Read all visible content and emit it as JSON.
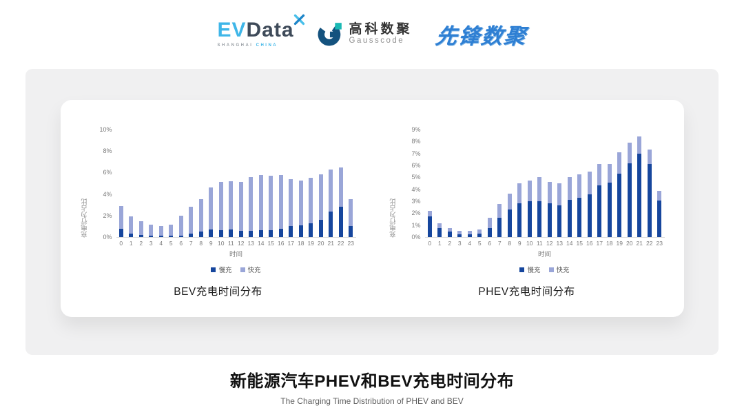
{
  "header": {
    "logos": {
      "evdata": {
        "ev": "EV",
        "data": "Data",
        "sub1": "SHANGHAI",
        "sub2": "CHINA"
      },
      "gausscode": {
        "cn": "高科数聚",
        "en": "Gausscode"
      },
      "pioneer": {
        "text": "先锋数聚"
      }
    }
  },
  "colors": {
    "slow": "#16469d",
    "fast": "#9aa6d8",
    "evdata_blue": "#3fb6e8",
    "evdata_dark": "#3e4a59",
    "gausscode_navy": "#14527e",
    "gausscode_teal": "#1ab9b4",
    "pioneer_blue": "#2e7fd3"
  },
  "chart_data": [
    {
      "type": "bar",
      "stacked": true,
      "title": "BEV充电时间分布",
      "ylabel": "充电行为占比",
      "xlabel": "时间",
      "grid": false,
      "legend_position": "bottom",
      "categories": [
        "0",
        "1",
        "2",
        "3",
        "4",
        "5",
        "6",
        "7",
        "8",
        "9",
        "10",
        "11",
        "12",
        "13",
        "14",
        "15",
        "16",
        "17",
        "18",
        "19",
        "20",
        "21",
        "22",
        "23"
      ],
      "ylim": [
        0,
        10
      ],
      "yticks": [
        0,
        2,
        4,
        6,
        8,
        10
      ],
      "series": [
        {
          "name": "慢充",
          "color_key": "slow",
          "values": [
            0.75,
            0.35,
            0.2,
            0.1,
            0.1,
            0.1,
            0.15,
            0.35,
            0.5,
            0.7,
            0.65,
            0.7,
            0.6,
            0.6,
            0.65,
            0.65,
            0.8,
            1.0,
            1.1,
            1.3,
            1.6,
            2.4,
            2.8,
            1.0
          ]
        },
        {
          "name": "快充",
          "color_key": "fast",
          "values": [
            2.15,
            1.55,
            1.3,
            1.05,
            0.95,
            1.05,
            1.85,
            2.45,
            3.0,
            3.9,
            4.45,
            4.5,
            4.5,
            4.95,
            5.1,
            5.05,
            4.95,
            4.4,
            4.15,
            4.2,
            4.25,
            3.9,
            3.7,
            2.55
          ]
        }
      ]
    },
    {
      "type": "bar",
      "stacked": true,
      "title": "PHEV充电时间分布",
      "ylabel": "充电行为占比",
      "xlabel": "时间",
      "grid": false,
      "legend_position": "bottom",
      "categories": [
        "0",
        "1",
        "2",
        "3",
        "4",
        "5",
        "6",
        "7",
        "8",
        "9",
        "10",
        "11",
        "12",
        "13",
        "14",
        "15",
        "16",
        "17",
        "18",
        "19",
        "20",
        "21",
        "22",
        "23"
      ],
      "ylim": [
        0,
        9
      ],
      "yticks": [
        0,
        1,
        2,
        3,
        4,
        5,
        6,
        7,
        8,
        9
      ],
      "series": [
        {
          "name": "慢充",
          "color_key": "slow",
          "values": [
            1.75,
            0.75,
            0.45,
            0.25,
            0.25,
            0.3,
            0.75,
            1.6,
            2.3,
            2.8,
            3.0,
            3.0,
            2.8,
            2.65,
            3.1,
            3.3,
            3.6,
            4.35,
            4.55,
            5.3,
            6.2,
            7.0,
            6.1,
            3.05
          ]
        },
        {
          "name": "快充",
          "color_key": "fast",
          "values": [
            0.45,
            0.4,
            0.3,
            0.25,
            0.25,
            0.35,
            0.85,
            1.15,
            1.35,
            1.7,
            1.75,
            2.0,
            1.8,
            1.85,
            1.9,
            1.95,
            1.9,
            1.75,
            1.55,
            1.8,
            1.7,
            1.4,
            1.25,
            0.8
          ]
        }
      ]
    }
  ],
  "footer": {
    "title": "新能源汽车PHEV和BEV充电时间分布",
    "subtitle": "The Charging Time Distribution of PHEV and BEV"
  }
}
